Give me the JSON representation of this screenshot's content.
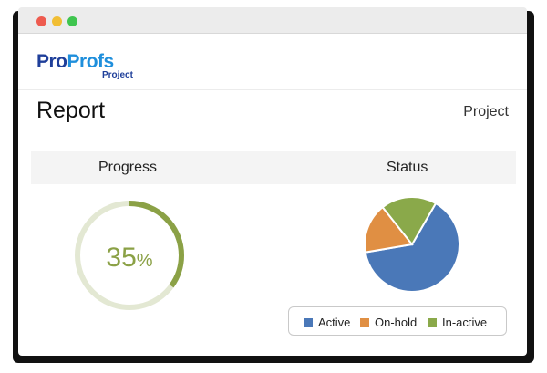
{
  "window": {
    "controls": [
      {
        "name": "close",
        "color": "#ee5b4f"
      },
      {
        "name": "minimize",
        "color": "#f1be34"
      },
      {
        "name": "maximize",
        "color": "#3fc54f"
      }
    ]
  },
  "brand": {
    "pro": "Pro",
    "profs": "Profs",
    "product": "Project",
    "colors": {
      "pro": "#1f3f9a",
      "profs": "#1f8fdc",
      "product": "#1f3f9a"
    }
  },
  "header": {
    "title": "Report",
    "project_link": "Project"
  },
  "progress_section": {
    "label": "Progress",
    "value": 35,
    "value_text": "35",
    "unit": "%",
    "colors": {
      "track": "#e3e8d3",
      "fill": "#8ba146"
    }
  },
  "status_section": {
    "label": "Status",
    "legend": {
      "active": "Active",
      "on_hold": "On-hold",
      "inactive": "In-active"
    }
  },
  "chart_data": {
    "type": "pie",
    "categories": [
      "Active",
      "On-hold",
      "In-active"
    ],
    "values": [
      64,
      17,
      19
    ],
    "colors": [
      "#4a78b8",
      "#e08f43",
      "#8aa94a"
    ],
    "start_angle_deg": -60,
    "title": "Status",
    "legend_position": "bottom"
  }
}
